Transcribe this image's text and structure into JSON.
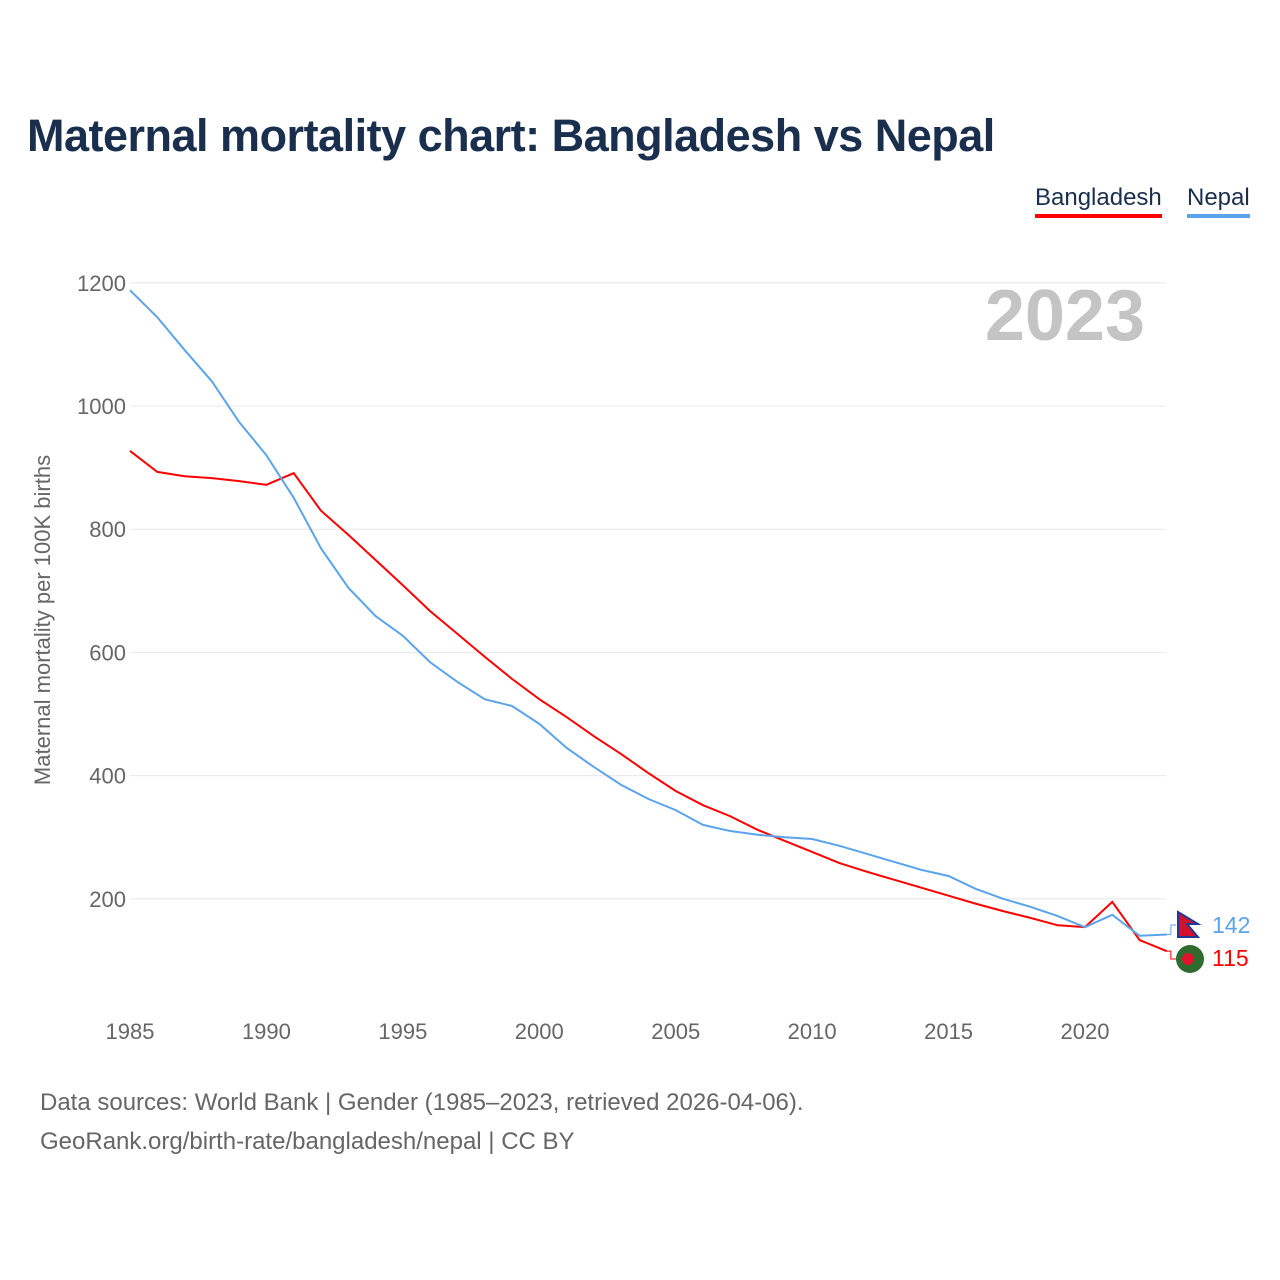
{
  "title": "Maternal mortality chart: Bangladesh vs Nepal",
  "legend": [
    "Bangladesh",
    "Nepal"
  ],
  "year_label": "2023",
  "sources": [
    "Data sources: World Bank | Gender (1985–2023, retrieved 2026-04-06).",
    "GeoRank.org/birth-rate/bangladesh/nepal | CC BY"
  ],
  "chart_data": {
    "type": "line",
    "title": "Maternal mortality chart: Bangladesh vs Nepal",
    "xlabel": "",
    "ylabel": "Maternal mortality per 100K births",
    "xlim": [
      1985,
      2023
    ],
    "ylim": [
      0,
      1200
    ],
    "xticks": [
      1985,
      1990,
      1995,
      2000,
      2005,
      2010,
      2015,
      2020
    ],
    "yticks": [
      200,
      400,
      600,
      800,
      1000,
      1200
    ],
    "grid": true,
    "legend_position": "top-right",
    "x": [
      1985,
      1986,
      1987,
      1988,
      1989,
      1990,
      1991,
      1992,
      1993,
      1994,
      1995,
      1996,
      1997,
      1998,
      1999,
      2000,
      2001,
      2002,
      2003,
      2004,
      2005,
      2006,
      2007,
      2008,
      2009,
      2010,
      2011,
      2012,
      2013,
      2014,
      2015,
      2016,
      2017,
      2018,
      2019,
      2020,
      2021,
      2022,
      2023
    ],
    "series": [
      {
        "name": "Bangladesh",
        "color": "#ff0000",
        "end_label": "115",
        "values": [
          927,
          893,
          886,
          883,
          878,
          872,
          891,
          830,
          791,
          750,
          709,
          667,
          630,
          593,
          557,
          524,
          495,
          464,
          435,
          404,
          375,
          352,
          334,
          312,
          294,
          276,
          258,
          244,
          231,
          218,
          205,
          192,
          180,
          169,
          157,
          154,
          195,
          133,
          115
        ]
      },
      {
        "name": "Nepal",
        "color": "#5ba4ec",
        "end_label": "142",
        "values": [
          1188,
          1144,
          1091,
          1040,
          974,
          920,
          851,
          769,
          705,
          659,
          627,
          584,
          552,
          524,
          513,
          484,
          445,
          414,
          385,
          362,
          344,
          320,
          310,
          304,
          300,
          297,
          286,
          273,
          260,
          247,
          237,
          216,
          200,
          187,
          172,
          154,
          174,
          140,
          142
        ]
      }
    ]
  }
}
